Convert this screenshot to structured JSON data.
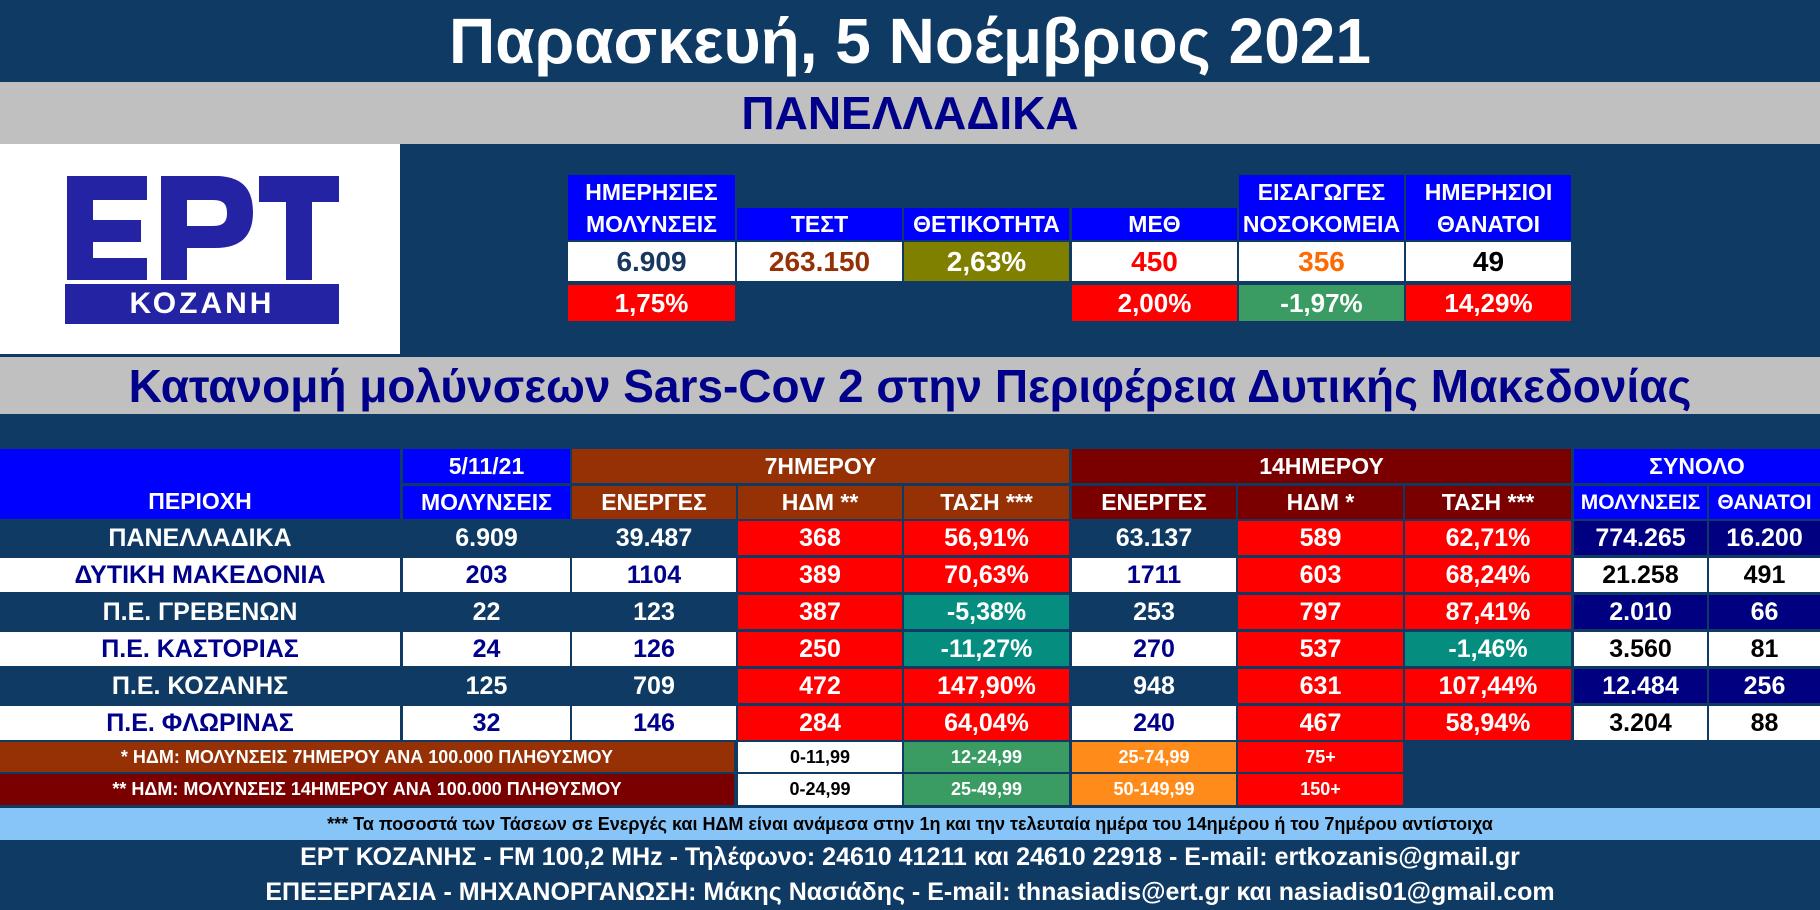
{
  "title": "Παρασκευή, 5 Νοέμβριος 2021",
  "national_band": "ΠΑΝΕΛΛΑΔΙΚΑ",
  "logo": {
    "letters": "ΕΡΤ",
    "subtitle": "ΚΟΖΑΝΗ"
  },
  "national": {
    "infections": {
      "label_line1": "ΗΜΕΡΗΣΙΕΣ",
      "label_line2": "ΜΟΛΥΝΣΕΙΣ",
      "value": "6.909",
      "change": "1,75%",
      "value_color": "#17375e"
    },
    "tests": {
      "label": "ΤΕΣΤ",
      "value": "263.150",
      "value_color": "#953105"
    },
    "positivity": {
      "label": "ΘΕΤΙΚΟΤΗΤΑ",
      "value": "2,63%",
      "bg": "#808000"
    },
    "icu": {
      "label": "ΜΕΘ",
      "value": "450",
      "change": "2,00%",
      "value_color": "#ff0000"
    },
    "admissions": {
      "label_line1": "ΕΙΣΑΓΩΓΕΣ",
      "label_line2": "ΝΟΣΟΚΟΜΕΙΑ",
      "value": "356",
      "change": "-1,97%",
      "value_color": "#ff6a00"
    },
    "deaths": {
      "label_line1": "ΗΜΕΡΗΣΙΟΙ",
      "label_line2": "ΘΑΝΑΤΟΙ",
      "value": "49",
      "change": "14,29%",
      "value_color": "#000000"
    }
  },
  "region_band": "Κατανομή μολύνσεων Sars-Cov 2 στην Περιφέρεια Δυτικής Μακεδονίας",
  "table": {
    "headers": {
      "area": "ΠΕΡΙΟΧΗ",
      "date": "5/11/21",
      "infections": "ΜΟΛΥΝΣΕΙΣ",
      "group7": "7ΗΜΕΡΟΥ",
      "group14": "14ΗΜΕΡΟΥ",
      "group_total": "ΣΥΝΟΛΟ",
      "active7": "ΕΝΕΡΓΕΣ",
      "idm7": "ΗΔΜ **",
      "trend7": "ΤΑΣΗ ***",
      "active14": "ΕΝΕΡΓΕΣ",
      "idm14": "ΗΔΜ *",
      "trend14": "ΤΑΣΗ ***",
      "total_infections": "ΜΟΛΥΝΣΕΙΣ",
      "total_deaths": "ΘΑΝΑΤΟΙ"
    },
    "rows": [
      {
        "area": "ΠΑΝΕΛΛΑΔΙΚΑ",
        "infections": "6.909",
        "active7": "39.487",
        "idm7": "368",
        "trend7": "56,91%",
        "trend7_neg": false,
        "active14": "63.137",
        "idm14": "589",
        "trend14": "62,71%",
        "trend14_neg": false,
        "total_infections": "774.265",
        "total_deaths": "16.200"
      },
      {
        "area": "ΔΥΤΙΚΗ ΜΑΚΕΔΟΝΙΑ",
        "infections": "203",
        "active7": "1104",
        "idm7": "389",
        "trend7": "70,63%",
        "trend7_neg": false,
        "active14": "1711",
        "idm14": "603",
        "trend14": "68,24%",
        "trend14_neg": false,
        "total_infections": "21.258",
        "total_deaths": "491"
      },
      {
        "area": "Π.Ε. ΓΡΕΒΕΝΩΝ",
        "infections": "22",
        "active7": "123",
        "idm7": "387",
        "trend7": "-5,38%",
        "trend7_neg": true,
        "active14": "253",
        "idm14": "797",
        "trend14": "87,41%",
        "trend14_neg": false,
        "total_infections": "2.010",
        "total_deaths": "66"
      },
      {
        "area": "Π.Ε. ΚΑΣΤΟΡΙΑΣ",
        "infections": "24",
        "active7": "126",
        "idm7": "250",
        "trend7": "-11,27%",
        "trend7_neg": true,
        "active14": "270",
        "idm14": "537",
        "trend14": "-1,46%",
        "trend14_neg": true,
        "total_infections": "3.560",
        "total_deaths": "81"
      },
      {
        "area": "Π.Ε. ΚΟΖΑΝΗΣ",
        "infections": "125",
        "active7": "709",
        "idm7": "472",
        "trend7": "147,90%",
        "trend7_neg": false,
        "active14": "948",
        "idm14": "631",
        "trend14": "107,44%",
        "trend14_neg": false,
        "total_infections": "12.484",
        "total_deaths": "256"
      },
      {
        "area": "Π.Ε. ΦΛΩΡΙΝΑΣ",
        "infections": "32",
        "active7": "146",
        "idm7": "284",
        "trend7": "64,04%",
        "trend7_neg": false,
        "active14": "240",
        "idm14": "467",
        "trend14": "58,94%",
        "trend14_neg": false,
        "total_infections": "3.204",
        "total_deaths": "88"
      }
    ]
  },
  "legend": {
    "row1": {
      "label": "* ΗΔΜ: ΜΟΛΥΝΣΕΙΣ 7ΗΜΕΡΟΥ ΑΝΑ 100.000 ΠΛΗΘΥΣΜΟΥ",
      "r1": "0-11,99",
      "r2": "12-24,99",
      "r3": "25-74,99",
      "r4": "75+"
    },
    "row2": {
      "label": "** ΗΔΜ: ΜΟΛΥΝΣΕΙΣ 14ΗΜΕΡΟΥ ΑΝΑ 100.000 ΠΛΗΘΥΣΜΟΥ",
      "r1": "0-24,99",
      "r2": "25-49,99",
      "r3": "50-149,99",
      "r4": "150+"
    }
  },
  "footnote": "*** Τα ποσοστά των Τάσεων σε Ενεργές και ΗΔΜ είναι ανάμεσα στην 1η και την τελευταία ημέρα του 14ημέρου ή του 7ημέρου αντίστοιχα",
  "footer": {
    "line1": "ΕΡΤ ΚΟΖΑΝΗΣ - FM 100,2 MHz - Τηλέφωνο:  24610 41211 και 24610 22918 - E-mail: ertkozanis@gmail.gr",
    "line2": "ΕΠΕΞΕΡΓΑΣΙΑ  -  ΜΗΧΑΝΟΡΓΑΝΩΣΗ: Μάκης Νασιάδης  -   E-mail: thnasiadis@ert.gr και nasiadis01@gmail.com"
  },
  "colors": {
    "background": "#0f3a63",
    "band": "#c0c0c0",
    "header_blue": "#0000ff",
    "header_brown": "#953105",
    "header_dark_red": "#7a0000",
    "alert_red": "#ff0000",
    "ok_teal": "#058e80",
    "legend_green": "#3a9c63",
    "legend_orange": "#ff8c1a",
    "navy_text": "#00008b",
    "total_dark": "#000080"
  }
}
